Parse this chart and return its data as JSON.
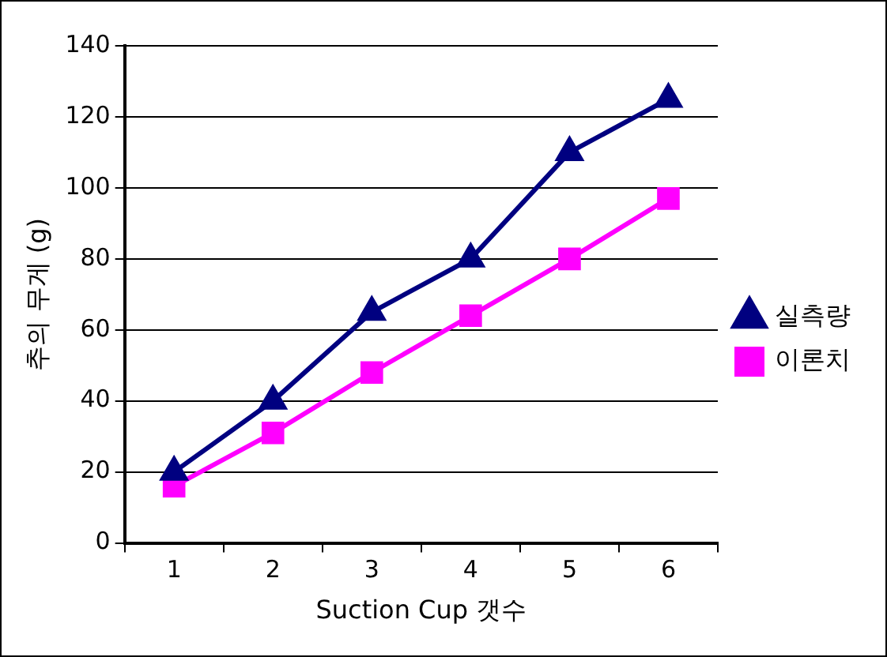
{
  "chart_data": {
    "type": "line",
    "xlabel": "Suction Cup 갯수",
    "ylabel": "추의 무게 (g)",
    "categories": [
      "1",
      "2",
      "3",
      "4",
      "5",
      "6"
    ],
    "series": [
      {
        "name": "실측량",
        "color": "#000080",
        "marker": "triangle",
        "values": [
          20,
          40,
          65,
          80,
          110,
          125
        ]
      },
      {
        "name": "이론치",
        "color": "#ff00ff",
        "marker": "square",
        "values": [
          16,
          31,
          48,
          64,
          80,
          97
        ]
      }
    ],
    "ylim": [
      0,
      140
    ],
    "yticks": [
      0,
      20,
      40,
      60,
      80,
      100,
      120,
      140
    ],
    "grid": "y",
    "legend": "right",
    "line_style": "solid"
  }
}
